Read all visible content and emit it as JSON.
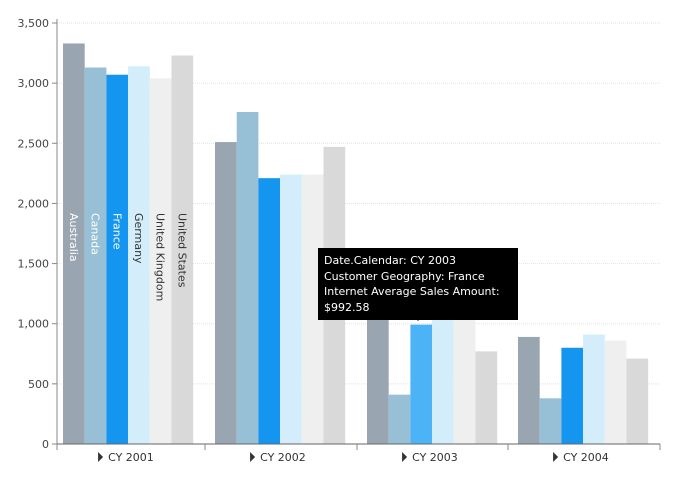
{
  "chart_data": {
    "type": "bar",
    "title": "",
    "xlabel": "",
    "ylabel": "",
    "ylim": [
      0,
      3500
    ],
    "yticks": [
      0,
      500,
      1000,
      1500,
      2000,
      2500,
      3000,
      3500
    ],
    "ytick_labels": [
      "0",
      "500",
      "1,000",
      "1,500",
      "2,000",
      "2,500",
      "3,000",
      "3,500"
    ],
    "grid": true,
    "categories": [
      "CY 2001",
      "CY 2002",
      "CY 2003",
      "CY 2004"
    ],
    "series": [
      {
        "name": "Australia",
        "color": "#9aa5b2",
        "label_color": "#ffffff",
        "values": [
          3330,
          2510,
          1100,
          890
        ]
      },
      {
        "name": "Canada",
        "color": "#97bfd6",
        "label_color": "#ffffff",
        "values": [
          3130,
          2760,
          410,
          380
        ]
      },
      {
        "name": "France",
        "color": "#1496f0",
        "label_color": "#ffffff",
        "values": [
          3070,
          2210,
          992.58,
          800
        ]
      },
      {
        "name": "Germany",
        "color": "#d3edfb",
        "label_color": "#333333",
        "values": [
          3140,
          2240,
          1050,
          910
        ]
      },
      {
        "name": "United Kingdom",
        "color": "#efefef",
        "label_color": "#333333",
        "values": [
          3040,
          2240,
          1050,
          860
        ]
      },
      {
        "name": "United States",
        "color": "#d9d9d9",
        "label_color": "#333333",
        "values": [
          3230,
          2470,
          770,
          710
        ]
      }
    ],
    "highlight": {
      "category_index": 2,
      "series_index": 2,
      "color": "#4db3f7"
    }
  },
  "tooltip": {
    "line1": "Date.Calendar: CY 2003",
    "line2": "Customer Geography: France",
    "line3": "Internet Average Sales Amount:",
    "line4": "$992.58"
  },
  "icons": {
    "category_expander": "triangle-right-icon"
  }
}
